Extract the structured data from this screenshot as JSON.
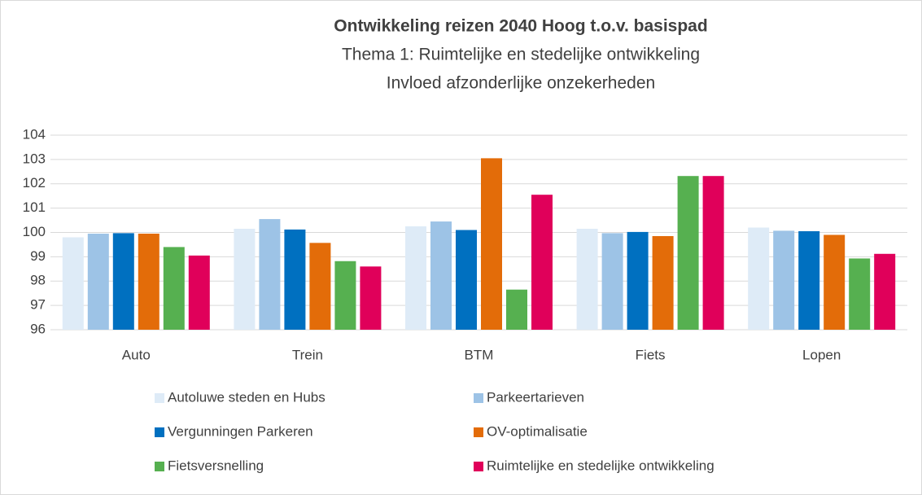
{
  "chart_data": {
    "type": "bar",
    "title": "Ontwikkeling reizen 2040 Hoog t.o.v. basispad",
    "subtitle": [
      "Thema 1: Ruimtelijke en stedelijke ontwikkeling",
      "Invloed afzonderlijke onzekerheden"
    ],
    "categories": [
      "Auto",
      "Trein",
      "BTM",
      "Fiets",
      "Lopen"
    ],
    "series": [
      {
        "name": "Autoluwe steden en Hubs",
        "color": "#deebf7",
        "values": [
          99.8,
          100.15,
          100.25,
          100.15,
          100.2
        ]
      },
      {
        "name": "Parkeertarieven",
        "color": "#9dc3e6",
        "values": [
          99.95,
          100.55,
          100.45,
          99.97,
          100.07
        ]
      },
      {
        "name": "Vergunningen Parkeren",
        "color": "#0070c0",
        "values": [
          99.97,
          100.12,
          100.1,
          100.02,
          100.05
        ]
      },
      {
        "name": "OV-optimalisatie",
        "color": "#e36c09",
        "values": [
          99.95,
          99.57,
          103.05,
          99.85,
          99.9
        ]
      },
      {
        "name": "Fietsversnelling",
        "color": "#56b050",
        "values": [
          99.4,
          98.82,
          97.65,
          102.32,
          98.93
        ]
      },
      {
        "name": "Ruimtelijke en stedelijke ontwikkeling",
        "color": "#e0005a",
        "values": [
          99.05,
          98.6,
          101.55,
          102.32,
          99.12
        ]
      }
    ],
    "ylim": [
      96,
      104
    ],
    "yticks": [
      96,
      97,
      98,
      99,
      100,
      101,
      102,
      103,
      104
    ],
    "grid": true
  }
}
